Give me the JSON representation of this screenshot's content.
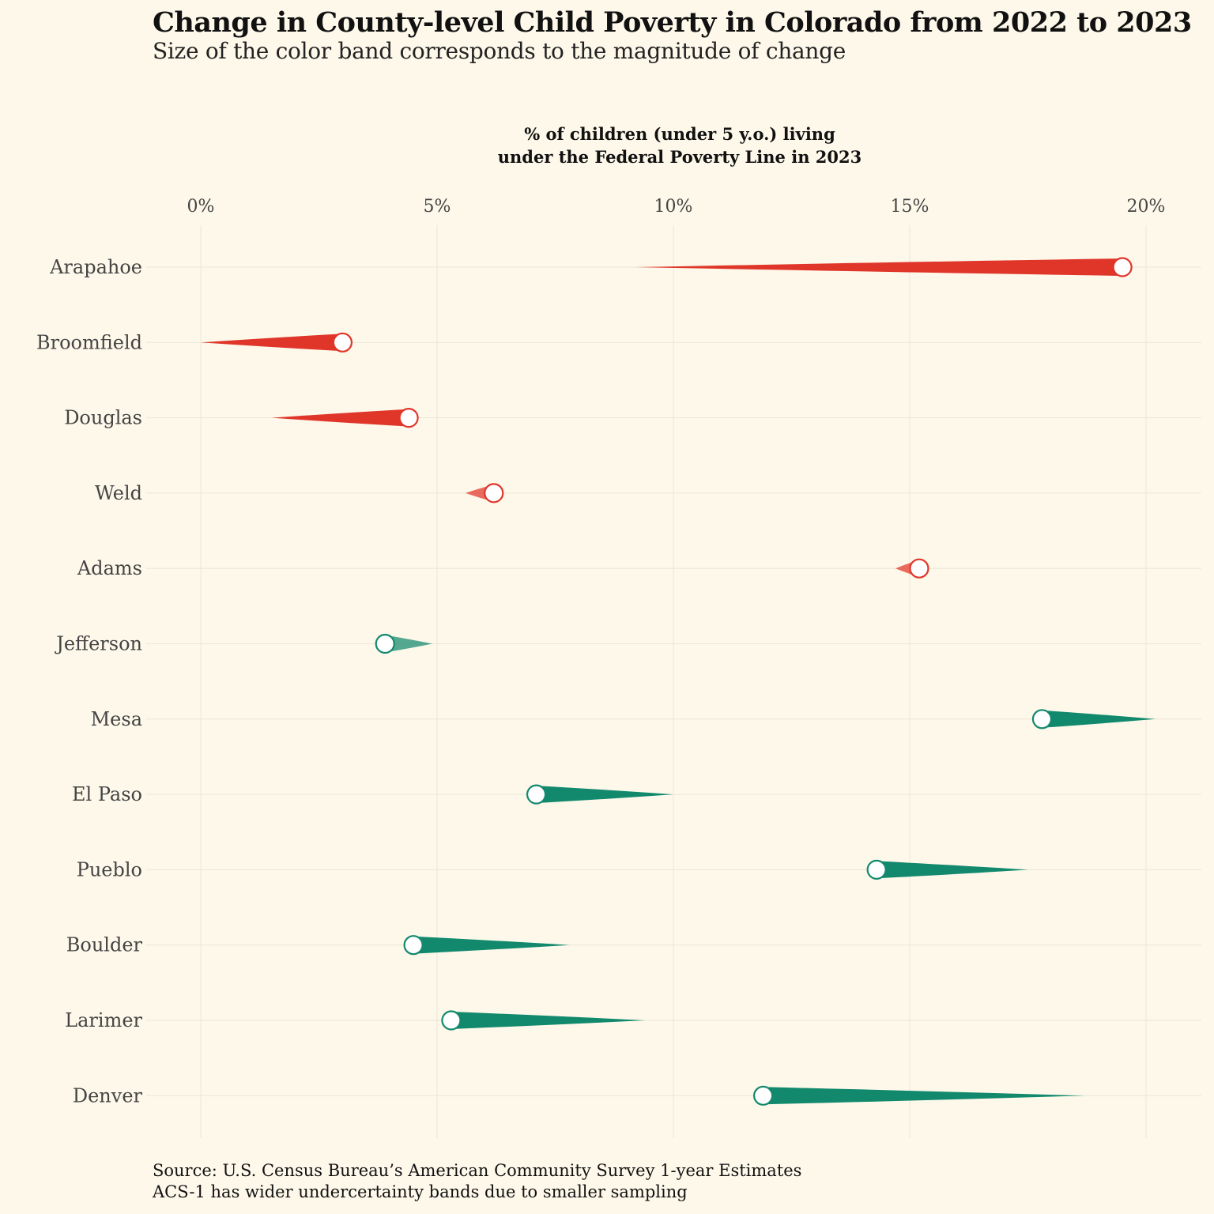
{
  "header": {
    "title": "Change in County-level Child Poverty in Colorado from 2022 to 2023",
    "subtitle": "Size of the color band corresponds to the magnitude of change"
  },
  "axis": {
    "title_line1": "% of children (under 5 y.o.) living",
    "title_line2": "under the Federal Poverty Line in 2023"
  },
  "caption": {
    "line1": "Source: U.S. Census Bureau’s American Community Survey 1-year Estimates",
    "line2": "ACS-1 has wider undercertainty bands due to smaller sampling"
  },
  "colors": {
    "increase": "#e0362a",
    "decrease": "#12896d",
    "background": "#fdf8ea",
    "grid": "#ece6d6"
  },
  "chart_data": {
    "type": "dot-with-change-band",
    "title": "Change in County-level Child Poverty in Colorado from 2022 to 2023",
    "subtitle": "Size of the color band corresponds to the magnitude of change",
    "xlabel": "% of children (under 5 y.o.) living under the Federal Poverty Line in 2023",
    "x_position": "top",
    "xlim": [
      -1.2,
      21.2
    ],
    "x_ticks": [
      0,
      5,
      10,
      15,
      20
    ],
    "x_tick_labels": [
      "0%",
      "5%",
      "10%",
      "15%",
      "20%"
    ],
    "grid": true,
    "series": [
      {
        "county": "Arapahoe",
        "value_2022": 9.2,
        "value_2023": 19.5
      },
      {
        "county": "Broomfield",
        "value_2022": 0.0,
        "value_2023": 3.0
      },
      {
        "county": "Douglas",
        "value_2022": 1.5,
        "value_2023": 4.4
      },
      {
        "county": "Weld",
        "value_2022": 5.6,
        "value_2023": 6.2
      },
      {
        "county": "Adams",
        "value_2022": 14.7,
        "value_2023": 15.2
      },
      {
        "county": "Jefferson",
        "value_2022": 4.9,
        "value_2023": 3.9
      },
      {
        "county": "Mesa",
        "value_2022": 20.2,
        "value_2023": 17.8
      },
      {
        "county": "El Paso",
        "value_2022": 10.0,
        "value_2023": 7.1
      },
      {
        "county": "Pueblo",
        "value_2022": 17.5,
        "value_2023": 14.3
      },
      {
        "county": "Boulder",
        "value_2022": 7.8,
        "value_2023": 4.5
      },
      {
        "county": "Larimer",
        "value_2022": 9.4,
        "value_2023": 5.3
      },
      {
        "county": "Denver",
        "value_2022": 18.7,
        "value_2023": 11.9
      }
    ]
  }
}
